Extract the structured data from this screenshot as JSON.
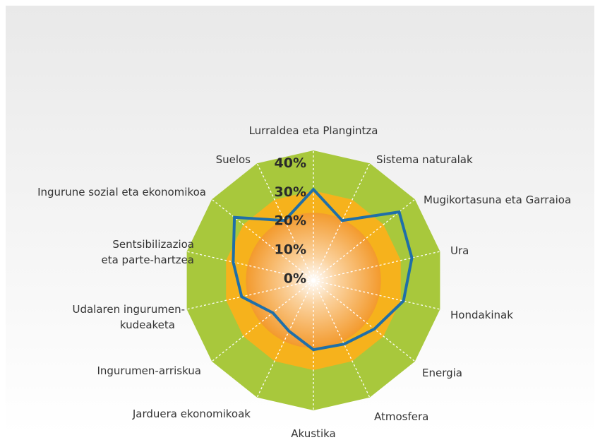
{
  "chart_data": {
    "type": "radar",
    "categories": [
      "Lurraldea eta Plangintza",
      "Sistema naturalak",
      "Mugikortasuna eta Garraioa",
      "Ura",
      "Hondakinak",
      "Energia",
      "Atmosfera",
      "Akustika",
      "Jarduera ekonomikoak",
      "Ingurumen-arriskua",
      "Udalaren ingurumen-\nkudeaketa",
      "Sentsibilizazioa\neta parte-hartzea",
      "Ingurune sozial eta ekonomikoa",
      "Suelos"
    ],
    "series": [
      {
        "color": "#1f6fa8",
        "values": [
          31.5,
          23,
          38,
          35,
          32,
          27,
          24.5,
          24,
          19.5,
          18,
          25.5,
          28.5,
          35,
          23
        ]
      }
    ],
    "ylim": [
      0,
      45
    ],
    "yticks": [
      {
        "value": 0,
        "label": "0%"
      },
      {
        "value": 10,
        "label": "10%"
      },
      {
        "value": 20,
        "label": "20%"
      },
      {
        "value": 30,
        "label": "30%"
      },
      {
        "value": 40,
        "label": "40%"
      }
    ]
  }
}
